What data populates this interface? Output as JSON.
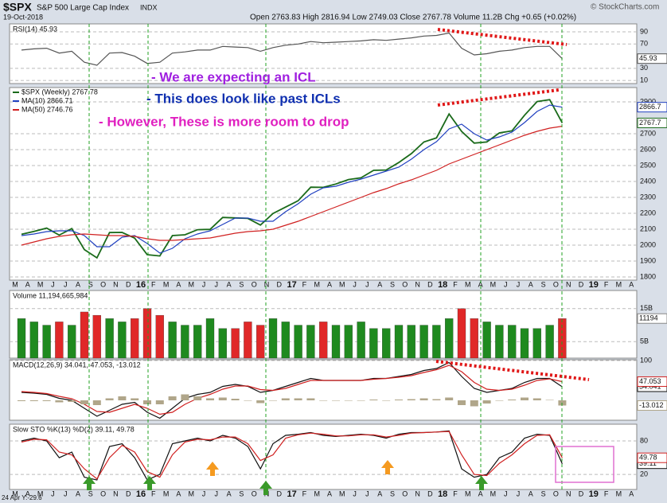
{
  "header": {
    "symbol": "$SPX",
    "name": "S&P 500 Large Cap Index",
    "exchange": "INDX",
    "date": "19-Oct-2018",
    "quote": "Open 2763.83  High 2816.94  Low 2749.03  Close 2767.78  Volume 11.2B  Chg +0.65 (+0.02%)",
    "watermark": "© StockCharts.com",
    "cursor": "24 Apr Y:-29.6"
  },
  "annotations": [
    "- We are expecting an ICL",
    "- This does look like past ICLs",
    "- However, These is more room to drop"
  ],
  "chart_data": [
    {
      "type": "line",
      "title": "RSI(14) 45.93",
      "ylim": [
        5,
        103
      ],
      "yticks": [
        10,
        30,
        70,
        90
      ],
      "grid": true,
      "series": [
        {
          "color": "#555555",
          "last_label": "45.93",
          "values": [
            60,
            62,
            63,
            55,
            58,
            40,
            35,
            55,
            56,
            50,
            38,
            40,
            55,
            57,
            60,
            60,
            66,
            65,
            64,
            58,
            64,
            68,
            70,
            74,
            72,
            73,
            74,
            75,
            77,
            76,
            78,
            80,
            83,
            84,
            88,
            63,
            52,
            54,
            58,
            60,
            64,
            66,
            66,
            45.93,
            null,
            null,
            null,
            null,
            null,
            null
          ]
        }
      ]
    },
    {
      "type": "line",
      "ylim": [
        1780,
        2990
      ],
      "yticks": [
        1800,
        1900,
        2000,
        2100,
        2200,
        2300,
        2400,
        2500,
        2600,
        2700,
        2900
      ],
      "grid": true,
      "categories": [
        "M",
        "A",
        "M",
        "J",
        "J",
        "A",
        "S",
        "O",
        "N",
        "D",
        "16",
        "F",
        "M",
        "A",
        "M",
        "J",
        "J",
        "A",
        "S",
        "O",
        "N",
        "D",
        "17",
        "F",
        "M",
        "A",
        "M",
        "J",
        "J",
        "A",
        "S",
        "O",
        "N",
        "D",
        "18",
        "F",
        "M",
        "A",
        "M",
        "J",
        "J",
        "A",
        "S",
        "O",
        "N",
        "D",
        "19",
        "F",
        "M",
        "A"
      ],
      "series": [
        {
          "name": "$SPX (Weekly) 2767.78",
          "color": "#1a6a1a",
          "last_label": "2767.7",
          "values": [
            2068,
            2086,
            2107,
            2063,
            2104,
            1972,
            1920,
            2079,
            2080,
            2044,
            1940,
            1932,
            2060,
            2065,
            2097,
            2099,
            2174,
            2171,
            2168,
            2126,
            2199,
            2239,
            2279,
            2364,
            2363,
            2384,
            2412,
            2423,
            2470,
            2472,
            2519,
            2575,
            2648,
            2674,
            2824,
            2714,
            2641,
            2648,
            2705,
            2718,
            2816,
            2902,
            2914,
            2767.78,
            null,
            null,
            null,
            null,
            null,
            null
          ]
        },
        {
          "name": "MA(10) 2866.71",
          "color": "#2040c0",
          "last_label": "2866.7",
          "values": [
            2060,
            2070,
            2085,
            2090,
            2090,
            2060,
            1990,
            1990,
            2050,
            2060,
            2010,
            1950,
            1980,
            2040,
            2070,
            2090,
            2130,
            2170,
            2170,
            2150,
            2150,
            2210,
            2260,
            2320,
            2360,
            2370,
            2395,
            2415,
            2440,
            2465,
            2490,
            2540,
            2600,
            2650,
            2730,
            2760,
            2700,
            2660,
            2680,
            2710,
            2770,
            2840,
            2880,
            2866.71,
            null,
            null,
            null,
            null,
            null,
            null
          ]
        },
        {
          "name": "MA(50) 2746.76",
          "color": "#d02020",
          "values": [
            2000,
            2020,
            2040,
            2055,
            2065,
            2070,
            2065,
            2060,
            2060,
            2055,
            2040,
            2030,
            2030,
            2035,
            2040,
            2045,
            2060,
            2075,
            2085,
            2090,
            2100,
            2125,
            2150,
            2180,
            2210,
            2240,
            2270,
            2300,
            2330,
            2355,
            2385,
            2410,
            2440,
            2470,
            2510,
            2540,
            2570,
            2600,
            2630,
            2660,
            2690,
            2715,
            2735,
            2746.76,
            null,
            null,
            null,
            null,
            null,
            null
          ]
        }
      ]
    },
    {
      "type": "bar",
      "title": "Volume 11,194,665,984",
      "ylim": [
        0,
        20.5
      ],
      "yticks": [
        {
          "value": 5,
          "label": "5B"
        },
        {
          "value": 15,
          "label": "15B"
        }
      ],
      "grid": true,
      "up_color": "#1f8a1f",
      "down_color": "#e02828",
      "last_label": "11194",
      "values": [
        12,
        11,
        10,
        11,
        10,
        14,
        13,
        12,
        11,
        12,
        15,
        13,
        11,
        10,
        10,
        12,
        9,
        9,
        11,
        10,
        12,
        11,
        10,
        10,
        11,
        10,
        10,
        11,
        9,
        9,
        10,
        10,
        10,
        10,
        12,
        15,
        12,
        11,
        10,
        10,
        9,
        9,
        10,
        12,
        null,
        null,
        null,
        null,
        null,
        null
      ]
    },
    {
      "type": "line",
      "title": "MACD(12,26,9) 34.041, 47.053, -13.012",
      "ylim": [
        -50,
        102
      ],
      "yticks": [
        100
      ],
      "grid": true,
      "series": [
        {
          "color": "#111111",
          "last_label": "34.041",
          "values": [
            20,
            18,
            15,
            5,
            0,
            -20,
            -40,
            -25,
            -10,
            -5,
            -30,
            -45,
            -20,
            5,
            15,
            20,
            35,
            40,
            35,
            20,
            25,
            35,
            45,
            55,
            50,
            50,
            50,
            50,
            55,
            55,
            60,
            65,
            75,
            80,
            95,
            60,
            30,
            20,
            25,
            30,
            45,
            55,
            55,
            34.041,
            null,
            null,
            null,
            null,
            null,
            null
          ]
        },
        {
          "color": "#d02020",
          "last_label": "47.053",
          "values": [
            22,
            20,
            17,
            10,
            4,
            -10,
            -28,
            -30,
            -20,
            -10,
            -20,
            -35,
            -30,
            -10,
            5,
            15,
            28,
            36,
            36,
            27,
            25,
            30,
            40,
            50,
            50,
            50,
            50,
            50,
            53,
            55,
            58,
            62,
            70,
            77,
            88,
            72,
            45,
            28,
            25,
            28,
            38,
            50,
            54,
            47.053,
            null,
            null,
            null,
            null,
            null,
            null
          ]
        },
        {
          "color": "#b0a68a",
          "style": "histogram",
          "last_label": "-13.012",
          "values": [
            -2,
            -2,
            -2,
            -5,
            -4,
            -10,
            -12,
            5,
            10,
            5,
            -10,
            -10,
            10,
            15,
            10,
            5,
            7,
            4,
            -1,
            -7,
            0,
            5,
            5,
            5,
            0,
            0,
            0,
            0,
            2,
            0,
            2,
            3,
            5,
            3,
            7,
            -12,
            -15,
            -8,
            0,
            2,
            7,
            5,
            1,
            -13.012,
            null,
            null,
            null,
            null,
            null,
            null
          ]
        }
      ]
    },
    {
      "type": "line",
      "title": "Slow STO %K(13) %D(2) 39.11, 49.78",
      "ylim": [
        -7,
        110
      ],
      "yticks": [
        20,
        80
      ],
      "grid": true,
      "categories": [
        "M",
        "A",
        "M",
        "J",
        "J",
        "A",
        "S",
        "O",
        "N",
        "D",
        "16",
        "F",
        "M",
        "A",
        "M",
        "J",
        "J",
        "A",
        "S",
        "O",
        "N",
        "D",
        "17",
        "F",
        "M",
        "A",
        "M",
        "J",
        "J",
        "A",
        "S",
        "O",
        "N",
        "D",
        "18",
        "F",
        "M",
        "A",
        "M",
        "J",
        "J",
        "A",
        "S",
        "O",
        "N",
        "D",
        "19",
        "F",
        "M",
        "A"
      ],
      "series": [
        {
          "color": "#111111",
          "last_label": "39.11",
          "values": [
            80,
            85,
            80,
            50,
            60,
            15,
            10,
            70,
            75,
            50,
            10,
            20,
            75,
            80,
            85,
            80,
            90,
            85,
            70,
            30,
            75,
            90,
            92,
            95,
            90,
            88,
            90,
            92,
            90,
            85,
            92,
            95,
            95,
            96,
            98,
            30,
            15,
            20,
            50,
            60,
            85,
            92,
            90,
            39.11,
            null,
            null,
            null,
            null,
            null,
            null
          ]
        },
        {
          "color": "#d02020",
          "last_label": "49.78",
          "values": [
            78,
            83,
            82,
            60,
            55,
            30,
            12,
            50,
            72,
            60,
            25,
            15,
            55,
            78,
            83,
            82,
            87,
            87,
            75,
            45,
            55,
            85,
            91,
            94,
            92,
            89,
            89,
            91,
            91,
            87,
            90,
            94,
            95,
            96,
            97,
            55,
            20,
            18,
            40,
            55,
            75,
            90,
            91,
            49.78,
            null,
            null,
            null,
            null,
            null,
            null
          ]
        }
      ]
    }
  ]
}
